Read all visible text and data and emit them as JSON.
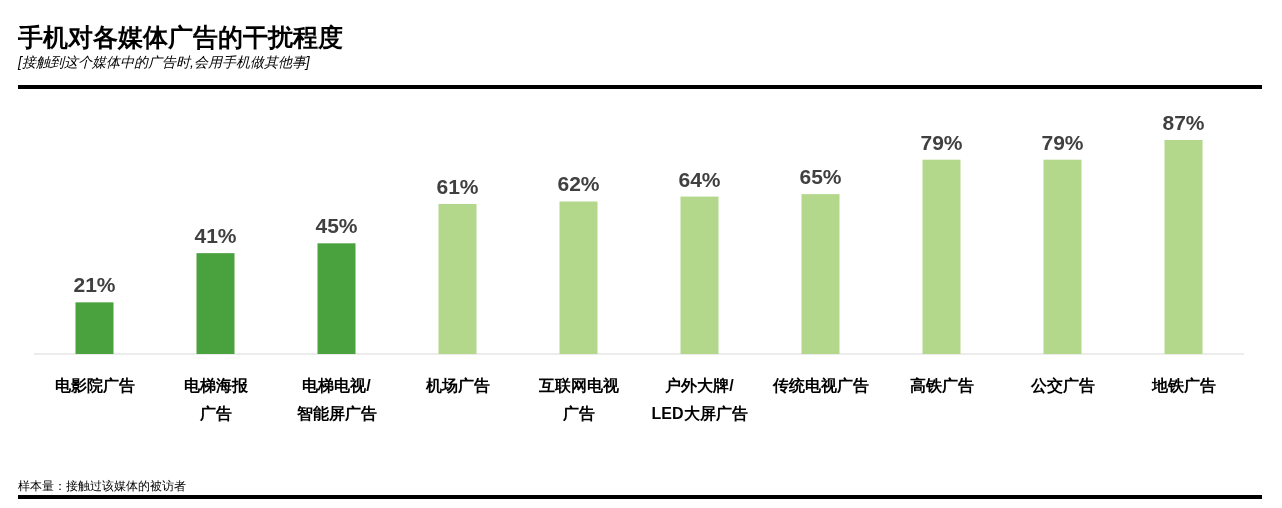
{
  "chart_data": {
    "type": "bar",
    "title": "手机对各媒体广告的干扰程度",
    "subtitle": "[接触到这个媒体中的广告时,会用手机做其他事]",
    "categories": [
      "电影院广告",
      "电梯海报广告",
      "电梯电视/智能屏广告",
      "机场广告",
      "互联网电视广告",
      "户外大牌/LED大屏广告",
      "传统电视广告",
      "高铁广告",
      "公交广告",
      "地铁广告"
    ],
    "values": [
      21,
      41,
      45,
      61,
      62,
      64,
      65,
      79,
      79,
      87
    ],
    "value_labels": [
      "21%",
      "41%",
      "45%",
      "61%",
      "62%",
      "64%",
      "65%",
      "79%",
      "79%",
      "87%"
    ],
    "colors": [
      "#4aa23e",
      "#4aa23e",
      "#4aa23e",
      "#b3d88c",
      "#b3d88c",
      "#b3d88c",
      "#b3d88c",
      "#b3d88c",
      "#b3d88c",
      "#b3d88c"
    ],
    "annotations": [
      "样本量：接触过该媒体的被访者"
    ]
  }
}
